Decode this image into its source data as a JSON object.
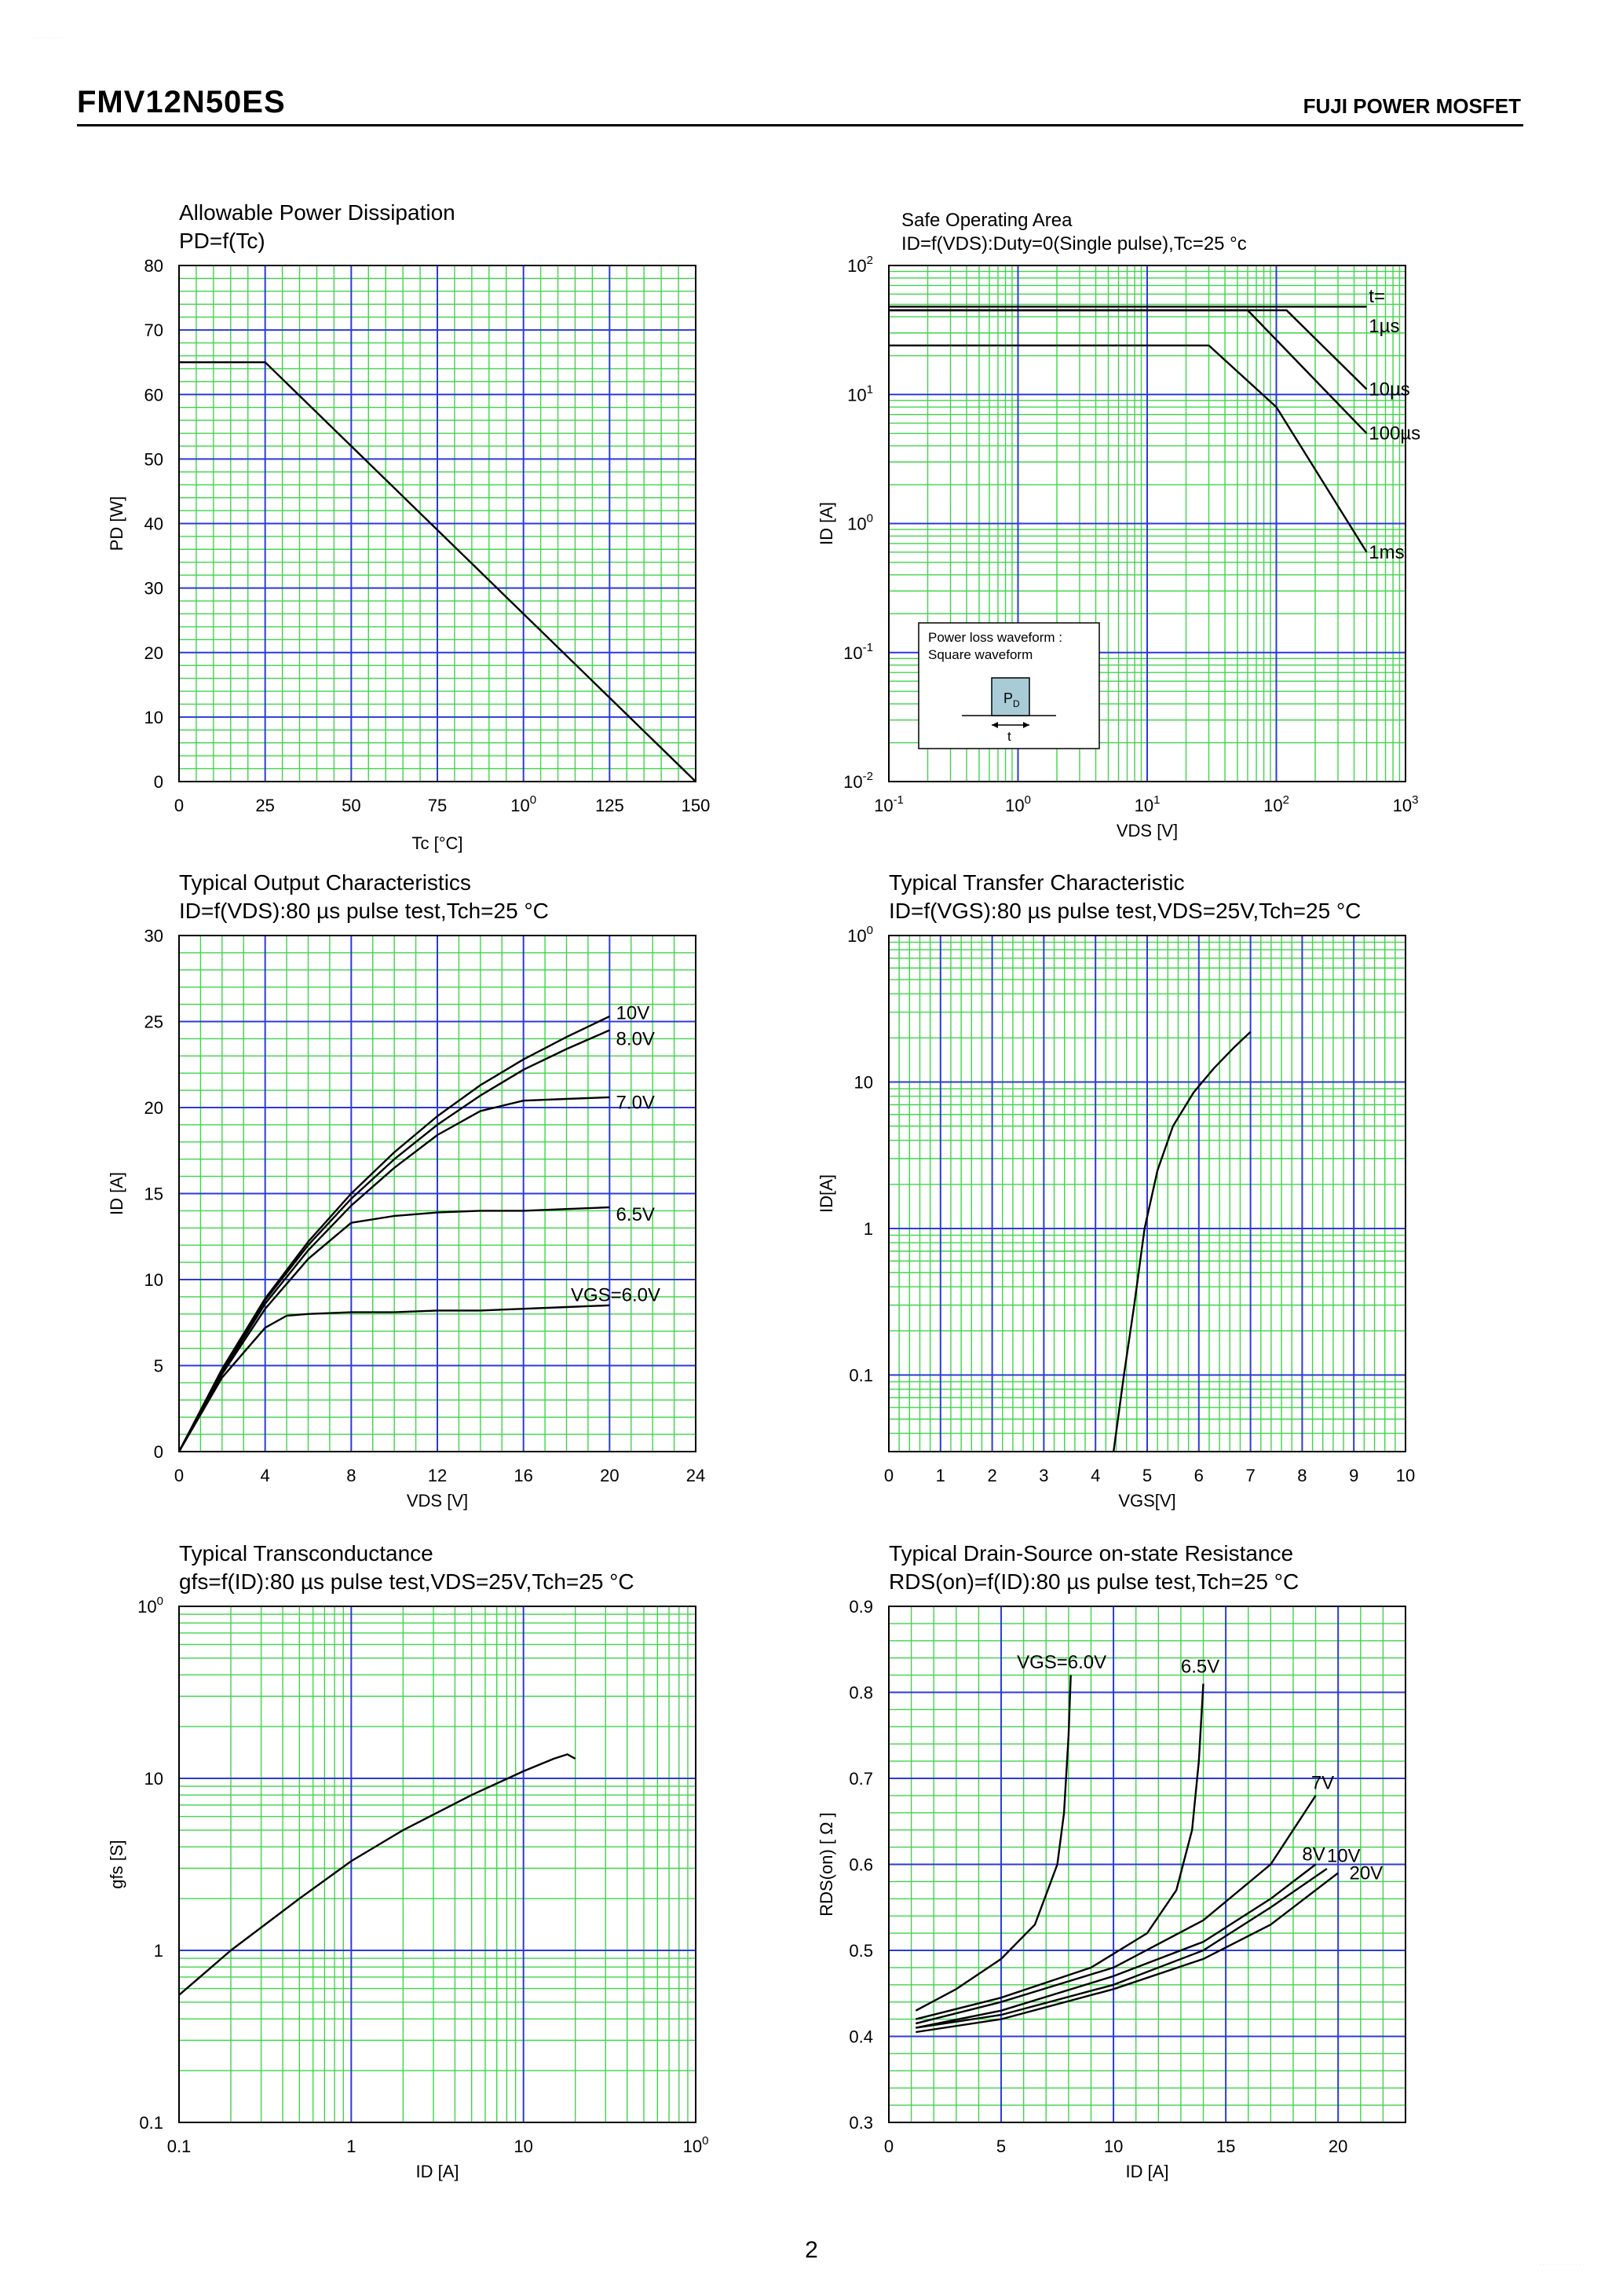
{
  "page": {
    "part_number": "FMV12N50ES",
    "brand": "FUJI POWER MOSFET",
    "page_number": "2",
    "corner_left": "· · · · · · · · · ·",
    "corner_right": "· · · · · · · · · · · · · ·"
  },
  "colors": {
    "grid_major": "#2a3bd6",
    "grid_minor": "#3fd44a",
    "curve": "#000000",
    "inset_box": "#a9cbd6"
  },
  "chart_data": [
    {
      "id": "power-dissipation",
      "type": "line",
      "title": "Allowable Power Dissipation",
      "subtitle": "PD=f(Tc)",
      "xlabel": "Tc [°C]",
      "ylabel": "PD [W]",
      "xscale": "linear",
      "yscale": "linear",
      "xlim": [
        0,
        150
      ],
      "ylim": [
        0,
        80
      ],
      "xticks": [
        0,
        25,
        50,
        75,
        100,
        125,
        150
      ],
      "xtick_labels": [
        "0",
        "25",
        "50",
        "75",
        "100",
        "125",
        "150"
      ],
      "yticks": [
        0,
        10,
        20,
        30,
        40,
        50,
        60,
        70,
        80
      ],
      "ytick_labels": [
        "0",
        "10",
        "20",
        "30",
        "40",
        "50",
        "60",
        "70",
        "80"
      ],
      "grid": true,
      "series": [
        {
          "x": [
            0,
            25,
            150
          ],
          "y": [
            65,
            65,
            0
          ]
        }
      ],
      "annotations": []
    },
    {
      "id": "safe-operating-area",
      "type": "line",
      "title": "Safe Operating Area",
      "subtitle": "ID=f(VDS):Duty=0(Single pulse),Tc=25 °c",
      "xlabel": "VDS [V]",
      "ylabel": "ID [A]",
      "xscale": "log",
      "yscale": "log",
      "xlim": [
        0.1,
        1000
      ],
      "ylim": [
        0.01,
        100
      ],
      "xticks": [
        0.1,
        1,
        10,
        100,
        1000
      ],
      "xtick_labels": [
        "10-1",
        "10^0",
        "10^1",
        "10^2",
        "10^3"
      ],
      "yticks": [
        0.01,
        0.1,
        1,
        10,
        100
      ],
      "ytick_labels": [
        "10-2",
        "10-1",
        "10^0",
        "10^1",
        "10^2"
      ],
      "grid": true,
      "series": [
        {
          "name": "1µs",
          "x": [
            0.1,
            500
          ],
          "y": [
            48,
            48
          ]
        },
        {
          "name": "10µs",
          "x": [
            0.1,
            120,
            500
          ],
          "y": [
            45,
            45,
            11
          ]
        },
        {
          "name": "100µs",
          "x": [
            0.1,
            60,
            500
          ],
          "y": [
            45,
            45,
            5
          ]
        },
        {
          "name": "1ms",
          "x": [
            0.1,
            30,
            100,
            500
          ],
          "y": [
            24,
            24,
            8,
            0.6
          ]
        }
      ],
      "annotations": [
        {
          "text": "t=",
          "x": 520,
          "y": 58
        },
        {
          "text": "1µs",
          "x": 520,
          "y": 34
        },
        {
          "text": "10µs",
          "x": 520,
          "y": 11
        },
        {
          "text": "100µs",
          "x": 520,
          "y": 5
        },
        {
          "text": "1ms",
          "x": 520,
          "y": 0.6
        }
      ],
      "inset": {
        "line1": "Power loss waveform :",
        "line2": "Square waveform",
        "pulse_label": "PD",
        "width_label": "t"
      }
    },
    {
      "id": "output-characteristics",
      "type": "line",
      "title": "Typical Output Characteristics",
      "subtitle": "ID=f(VDS):80 µs pulse test,Tch=25 °C",
      "xlabel": "VDS [V]",
      "ylabel": "ID [A]",
      "xscale": "linear",
      "yscale": "linear",
      "xlim": [
        0,
        24
      ],
      "ylim": [
        0,
        30
      ],
      "xticks": [
        0,
        4,
        8,
        12,
        16,
        20,
        24
      ],
      "xtick_labels": [
        "0",
        "4",
        "8",
        "12",
        "16",
        "20",
        "24"
      ],
      "yticks": [
        0,
        5,
        10,
        15,
        20,
        25,
        30
      ],
      "ytick_labels": [
        "0",
        "5",
        "10",
        "15",
        "20",
        "25",
        "30"
      ],
      "grid": true,
      "series": [
        {
          "name": "10V",
          "x": [
            0,
            2,
            4,
            6,
            8,
            10,
            12,
            14,
            16,
            18,
            20
          ],
          "y": [
            0,
            4.8,
            8.9,
            12.2,
            15.0,
            17.4,
            19.5,
            21.3,
            22.8,
            24.1,
            25.3
          ]
        },
        {
          "name": "8.0V",
          "x": [
            0,
            2,
            4,
            6,
            8,
            10,
            12,
            14,
            16,
            18,
            20
          ],
          "y": [
            0,
            4.7,
            8.8,
            12.0,
            14.7,
            17.0,
            19.0,
            20.7,
            22.2,
            23.4,
            24.5
          ]
        },
        {
          "name": "7.0V",
          "x": [
            0,
            2,
            4,
            6,
            8,
            10,
            12,
            14,
            16,
            18,
            20
          ],
          "y": [
            0,
            4.6,
            8.6,
            11.7,
            14.3,
            16.5,
            18.4,
            19.8,
            20.4,
            20.5,
            20.6
          ]
        },
        {
          "name": "6.5V",
          "x": [
            0,
            2,
            4,
            6,
            8,
            10,
            12,
            14,
            16,
            18,
            20
          ],
          "y": [
            0,
            4.5,
            8.3,
            11.2,
            13.3,
            13.7,
            13.9,
            14.0,
            14.0,
            14.1,
            14.2
          ]
        },
        {
          "name": "VGS=6.0V",
          "x": [
            0,
            2,
            4,
            5,
            6,
            8,
            10,
            12,
            14,
            16,
            18,
            20
          ],
          "y": [
            0,
            4.3,
            7.2,
            7.9,
            8.0,
            8.1,
            8.1,
            8.2,
            8.2,
            8.3,
            8.4,
            8.5
          ]
        }
      ],
      "annotations": [
        {
          "text": "10V",
          "x": 20.3,
          "y": 25.5
        },
        {
          "text": "8.0V",
          "x": 20.3,
          "y": 24.0
        },
        {
          "text": "7.0V",
          "x": 20.3,
          "y": 20.3
        },
        {
          "text": "6.5V",
          "x": 20.3,
          "y": 13.8
        },
        {
          "text": "VGS=6.0V",
          "x": 18.2,
          "y": 9.1
        }
      ]
    },
    {
      "id": "transfer-characteristic",
      "type": "line",
      "title": "Typical Transfer Characteristic",
      "subtitle": "ID=f(VGS):80 µs pulse test,VDS=25V,Tch=25 °C",
      "xlabel": "VGS[V]",
      "ylabel": "ID[A]",
      "xscale": "linear",
      "yscale": "log",
      "xlim": [
        0,
        10
      ],
      "ylim": [
        0.03,
        100
      ],
      "xticks": [
        0,
        1,
        2,
        3,
        4,
        5,
        6,
        7,
        8,
        9,
        10
      ],
      "xtick_labels": [
        "0",
        "1",
        "2",
        "3",
        "4",
        "5",
        "6",
        "7",
        "8",
        "9",
        "10"
      ],
      "yticks": [
        0.1,
        1,
        10,
        100
      ],
      "ytick_labels": [
        "0.1",
        "1",
        "10",
        "100"
      ],
      "grid": true,
      "series": [
        {
          "x": [
            4.35,
            4.55,
            4.75,
            4.95,
            5.2,
            5.5,
            5.9,
            6.3,
            6.7,
            7.0
          ],
          "y": [
            0.03,
            0.1,
            0.3,
            1.0,
            2.5,
            5.0,
            8.5,
            12.5,
            17.5,
            22
          ]
        }
      ],
      "annotations": []
    },
    {
      "id": "transconductance",
      "type": "line",
      "title": "Typical Transconductance",
      "subtitle": "gfs=f(ID):80 µs pulse test,VDS=25V,Tch=25  °C",
      "xlabel": "ID [A]",
      "ylabel": "gfs [S]",
      "xscale": "log",
      "yscale": "log",
      "xlim": [
        0.1,
        100
      ],
      "ylim": [
        0.1,
        100
      ],
      "xticks": [
        0.1,
        1,
        10,
        100
      ],
      "xtick_labels": [
        "0.1",
        "1",
        "10",
        "100"
      ],
      "yticks": [
        0.1,
        1,
        10,
        100
      ],
      "ytick_labels": [
        "0.1",
        "1",
        "10",
        "100"
      ],
      "grid": true,
      "series": [
        {
          "x": [
            0.1,
            0.2,
            0.5,
            1,
            2,
            5,
            10,
            15,
            18,
            20
          ],
          "y": [
            0.55,
            1.0,
            2.0,
            3.3,
            5.0,
            8.0,
            11.0,
            13.0,
            13.8,
            13.0
          ]
        }
      ],
      "annotations": []
    },
    {
      "id": "on-state-resistance",
      "type": "line",
      "title": "Typical Drain-Source on-state Resistance",
      "subtitle": "RDS(on)=f(ID):80  µs pulse test,Tch=25  °C",
      "xlabel": "ID [A]",
      "ylabel": "RDS(on) [ Ω ]",
      "xscale": "linear",
      "yscale": "linear",
      "xlim": [
        0,
        23
      ],
      "ylim": [
        0.3,
        0.9
      ],
      "xticks": [
        0,
        5,
        10,
        15,
        20
      ],
      "xtick_labels": [
        "0",
        "5",
        "10",
        "15",
        "20"
      ],
      "yticks": [
        0.3,
        0.4,
        0.5,
        0.6,
        0.7,
        0.8,
        0.9
      ],
      "ytick_labels": [
        "0.3",
        "0.4",
        "0.5",
        "0.6",
        "0.7",
        "0.8",
        "0.9"
      ],
      "grid": true,
      "series": [
        {
          "name": "VGS=6.0V",
          "x": [
            1.2,
            3,
            5,
            6.5,
            7.5,
            7.8,
            8.0,
            8.1
          ],
          "y": [
            0.43,
            0.455,
            0.49,
            0.53,
            0.6,
            0.66,
            0.75,
            0.82
          ]
        },
        {
          "name": "6.5V",
          "x": [
            1.2,
            5,
            9,
            11.5,
            12.8,
            13.5,
            13.8,
            14.0
          ],
          "y": [
            0.42,
            0.445,
            0.48,
            0.52,
            0.57,
            0.64,
            0.72,
            0.81
          ]
        },
        {
          "name": "7V",
          "x": [
            1.2,
            5,
            10,
            14,
            17,
            19.0
          ],
          "y": [
            0.415,
            0.44,
            0.48,
            0.535,
            0.6,
            0.68
          ]
        },
        {
          "name": "8V",
          "x": [
            1.2,
            5,
            10,
            14,
            17,
            19.0
          ],
          "y": [
            0.41,
            0.43,
            0.47,
            0.51,
            0.56,
            0.6
          ]
        },
        {
          "name": "10V",
          "x": [
            1.2,
            5,
            10,
            14,
            17,
            19.5
          ],
          "y": [
            0.41,
            0.425,
            0.46,
            0.5,
            0.55,
            0.595
          ]
        },
        {
          "name": "20V",
          "x": [
            1.2,
            5,
            10,
            14,
            17,
            20.0
          ],
          "y": [
            0.405,
            0.42,
            0.455,
            0.49,
            0.53,
            0.59
          ]
        }
      ],
      "annotations": [
        {
          "text": "VGS=6.0V",
          "x": 5.7,
          "y": 0.835
        },
        {
          "text": "6.5V",
          "x": 13.0,
          "y": 0.83
        },
        {
          "text": "7V",
          "x": 18.8,
          "y": 0.695
        },
        {
          "text": "8V",
          "x": 18.4,
          "y": 0.612
        },
        {
          "text": "10V",
          "x": 19.5,
          "y": 0.61
        },
        {
          "text": "20V",
          "x": 20.5,
          "y": 0.59
        }
      ]
    }
  ]
}
